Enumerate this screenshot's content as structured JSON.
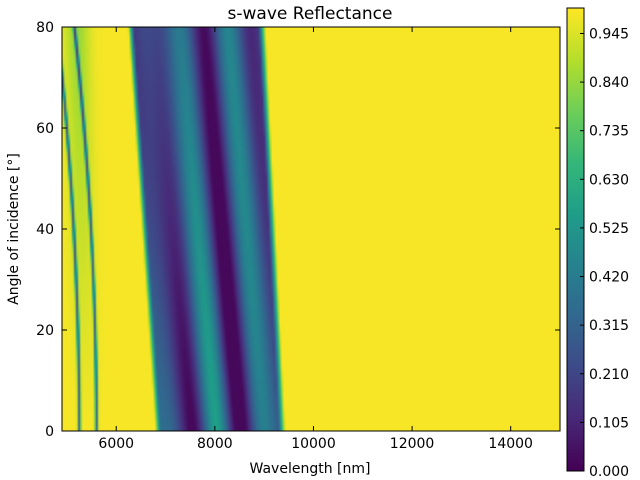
{
  "chart_data": {
    "type": "heatmap",
    "title": "s-wave Reflectance",
    "xlabel": "Wavelength [nm]",
    "ylabel": "Angle of incidence [°]",
    "xlim": [
      4900,
      15000
    ],
    "ylim": [
      0,
      80
    ],
    "x_ticks": [
      6000,
      8000,
      10000,
      12000,
      14000
    ],
    "y_ticks": [
      0,
      20,
      40,
      60,
      80
    ],
    "colormap": "viridis",
    "colorbar": {
      "vmin": 0.0,
      "vmax": 1.0,
      "ticks": [
        "0.000",
        "0.105",
        "0.210",
        "0.315",
        "0.420",
        "0.525",
        "0.630",
        "0.735",
        "0.840",
        "0.945"
      ]
    },
    "grid": false,
    "features": [
      {
        "region": "short-wavelength dips",
        "dip_wavelengths_nm_at_0deg": [
          5250,
          5600
        ],
        "shift_per_80deg_nm": -450
      },
      {
        "region": "main low-reflectance band",
        "edges_nm_at_0deg": [
          6850,
          9350
        ],
        "edges_nm_at_80deg": [
          6300,
          8950
        ],
        "mean_reflectance": 0.25
      },
      {
        "region": "long-wavelength plateau",
        "range_nm": [
          9800,
          15000
        ],
        "reflectance": 0.99
      }
    ]
  }
}
